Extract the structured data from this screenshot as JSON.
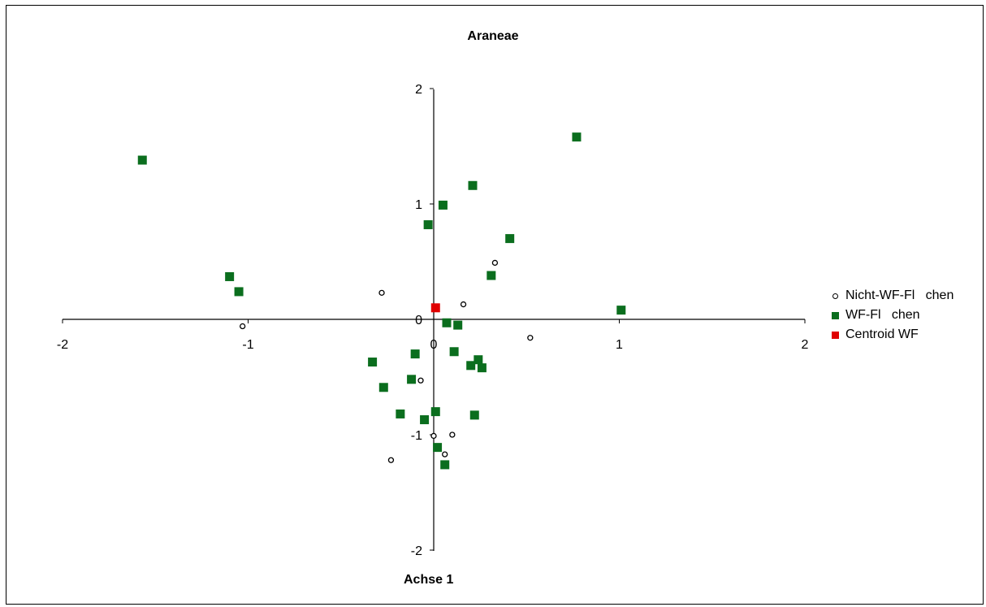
{
  "chart_data": {
    "type": "scatter",
    "title": "Araneae",
    "xlabel": "Achse 1",
    "ylabel": "",
    "xlim": [
      -2,
      2
    ],
    "ylim": [
      -2,
      2
    ],
    "x_ticks": [
      -2,
      -1,
      0,
      1,
      2
    ],
    "y_ticks": [
      2,
      1,
      0,
      -1,
      -2
    ],
    "x_tick_labels": [
      "-2",
      "-1",
      "0",
      "1",
      "2"
    ],
    "y_tick_labels": [
      "2",
      "1",
      "0",
      "-1",
      "-2"
    ],
    "grid": false,
    "legend_position": "right",
    "series": [
      {
        "name": "Nicht-WF-Fl   chen",
        "marker": "circle",
        "color": "#000000",
        "points": [
          [
            -1.03,
            -0.06
          ],
          [
            -0.28,
            0.23
          ],
          [
            0.16,
            0.13
          ],
          [
            0.33,
            0.49
          ],
          [
            0.52,
            -0.16
          ],
          [
            -0.07,
            -0.53
          ],
          [
            0.1,
            -1.0
          ],
          [
            0.0,
            -1.01
          ],
          [
            0.06,
            -1.17
          ],
          [
            -0.23,
            -1.22
          ]
        ]
      },
      {
        "name": "WF-Fl   chen",
        "marker": "square",
        "color": "#0B6E1E",
        "points": [
          [
            -1.57,
            1.38
          ],
          [
            0.77,
            1.58
          ],
          [
            0.05,
            0.99
          ],
          [
            0.21,
            1.16
          ],
          [
            -0.03,
            0.82
          ],
          [
            0.41,
            0.7
          ],
          [
            -1.1,
            0.37
          ],
          [
            -1.05,
            0.24
          ],
          [
            0.31,
            0.38
          ],
          [
            1.01,
            0.08
          ],
          [
            0.07,
            -0.03
          ],
          [
            0.13,
            -0.05
          ],
          [
            -0.33,
            -0.37
          ],
          [
            -0.1,
            -0.3
          ],
          [
            0.11,
            -0.28
          ],
          [
            0.24,
            -0.35
          ],
          [
            0.2,
            -0.4
          ],
          [
            0.26,
            -0.42
          ],
          [
            -0.12,
            -0.52
          ],
          [
            -0.27,
            -0.59
          ],
          [
            -0.18,
            -0.82
          ],
          [
            -0.05,
            -0.87
          ],
          [
            0.01,
            -0.8
          ],
          [
            0.22,
            -0.83
          ],
          [
            0.02,
            -1.11
          ],
          [
            0.06,
            -1.26
          ]
        ]
      },
      {
        "name": "Centroid WF",
        "marker": "square",
        "color": "#E00000",
        "points": [
          [
            0.01,
            0.1
          ]
        ]
      }
    ]
  }
}
